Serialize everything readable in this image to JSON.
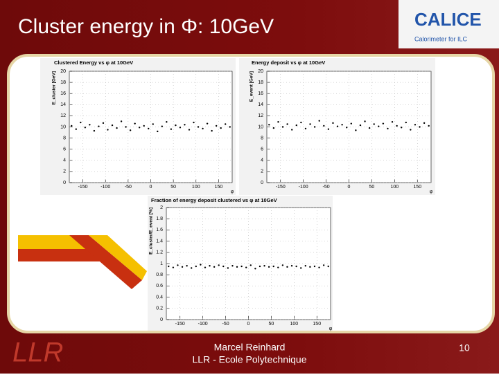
{
  "slide": {
    "title": "Cluster energy  in Φ: 10GeV",
    "logo": "CALICE",
    "logo_subtitle": "Calorimeter for ILC",
    "author": "Marcel Reinhard",
    "affiliation": "LLR - Ecole Polytechnique",
    "page": "10"
  },
  "chart_data": [
    {
      "type": "scatter",
      "title": "Clustered Energy vs φ at 10GeV",
      "y_label": "E_cluster [GeV]",
      "x_label": "φ",
      "color": "#000000",
      "x": [
        -175,
        -165,
        -155,
        -145,
        -135,
        -125,
        -115,
        -105,
        -95,
        -85,
        -75,
        -65,
        -55,
        -45,
        -35,
        -25,
        -15,
        -5,
        5,
        15,
        25,
        35,
        45,
        55,
        65,
        75,
        85,
        95,
        105,
        115,
        125,
        135,
        145,
        155,
        165,
        175
      ],
      "values": [
        10.2,
        9.6,
        10.8,
        9.9,
        10.4,
        9.3,
        10.1,
        10.7,
        9.5,
        10.3,
        9.8,
        11.0,
        10.0,
        9.4,
        10.6,
        9.9,
        10.2,
        9.7,
        10.5,
        9.2,
        10.1,
        10.9,
        9.6,
        10.3,
        9.9,
        10.4,
        9.5,
        10.8,
        10.0,
        9.7,
        10.6,
        9.3,
        10.2,
        9.8,
        10.5,
        10.0
      ],
      "xlim": [
        -180,
        180
      ],
      "xticks": [
        -150,
        -100,
        -50,
        0,
        50,
        100,
        150
      ],
      "ylim": [
        0,
        20
      ],
      "yticks": [
        0,
        2,
        4,
        6,
        8,
        10,
        12,
        14,
        16,
        18,
        20
      ],
      "grid": true
    },
    {
      "type": "scatter",
      "title": "Energy deposit vs φ at 10GeV",
      "y_label": "E_event [GeV]",
      "x_label": "φ",
      "color": "#000000",
      "x": [
        -175,
        -165,
        -155,
        -145,
        -135,
        -125,
        -115,
        -105,
        -95,
        -85,
        -75,
        -65,
        -55,
        -45,
        -35,
        -25,
        -15,
        -5,
        5,
        15,
        25,
        35,
        45,
        55,
        65,
        75,
        85,
        95,
        105,
        115,
        125,
        135,
        145,
        155,
        165,
        175
      ],
      "values": [
        10.4,
        9.8,
        10.9,
        10.0,
        10.5,
        9.5,
        10.3,
        10.8,
        9.7,
        10.5,
        10.0,
        11.1,
        10.2,
        9.6,
        10.7,
        10.1,
        10.4,
        9.9,
        10.6,
        9.4,
        10.3,
        11.0,
        9.8,
        10.5,
        10.1,
        10.6,
        9.7,
        10.9,
        10.2,
        9.9,
        10.8,
        9.5,
        10.4,
        10.0,
        10.7,
        10.2
      ],
      "xlim": [
        -180,
        180
      ],
      "xticks": [
        -150,
        -100,
        -50,
        0,
        50,
        100,
        150
      ],
      "ylim": [
        0,
        20
      ],
      "yticks": [
        0,
        2,
        4,
        6,
        8,
        10,
        12,
        14,
        16,
        18,
        20
      ],
      "grid": true
    },
    {
      "type": "scatter",
      "title": "Fraction of energy deposit clustered vs φ at 10GeV",
      "y_label": "E_cluster/E_event [%]",
      "x_label": "φ",
      "color": "#000000",
      "x": [
        -175,
        -165,
        -155,
        -145,
        -135,
        -125,
        -115,
        -105,
        -95,
        -85,
        -75,
        -65,
        -55,
        -45,
        -35,
        -25,
        -15,
        -5,
        5,
        15,
        25,
        35,
        45,
        55,
        65,
        75,
        85,
        95,
        105,
        115,
        125,
        135,
        145,
        155,
        165,
        175
      ],
      "values": [
        0.95,
        0.93,
        0.97,
        0.94,
        0.96,
        0.92,
        0.95,
        0.98,
        0.93,
        0.96,
        0.94,
        0.97,
        0.95,
        0.92,
        0.96,
        0.94,
        0.95,
        0.93,
        0.97,
        0.91,
        0.95,
        0.96,
        0.94,
        0.95,
        0.93,
        0.97,
        0.94,
        0.96,
        0.95,
        0.92,
        0.96,
        0.94,
        0.95,
        0.93,
        0.97,
        0.95
      ],
      "xlim": [
        -180,
        180
      ],
      "xticks": [
        -150,
        -100,
        -50,
        0,
        50,
        100,
        150
      ],
      "ylim": [
        0,
        2
      ],
      "yticks": [
        0,
        0.2,
        0.4,
        0.6,
        0.8,
        1,
        1.2,
        1.4,
        1.6,
        1.8,
        2
      ],
      "grid": true
    }
  ]
}
